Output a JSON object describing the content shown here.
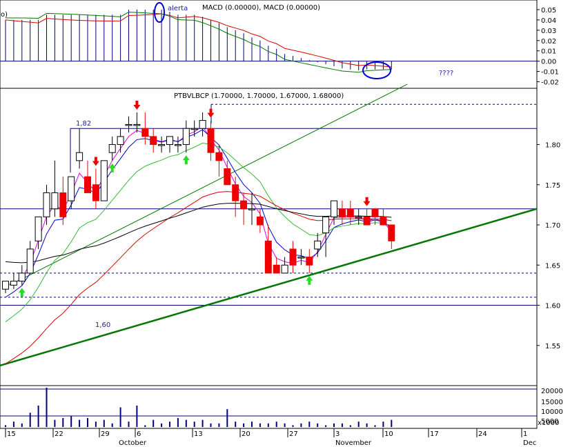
{
  "chart_data": {
    "type": "stock-candlestick-with-indicators",
    "title": "PTBVLBCP (1.70000, 1.70000, 1.67000, 1.68000)",
    "macd_title": "MACD (0.00000), MACD (0.00000)",
    "macd_note": "alerta",
    "macd_question": "????",
    "macd_left_label": "o)",
    "level_labels": [
      "1,82",
      "1,60"
    ],
    "x_tick_labels": [
      "15",
      "22",
      "29",
      "6",
      "13",
      "20",
      "27",
      "3",
      "10",
      "17",
      "24",
      "1",
      "Dec"
    ],
    "month_labels": [
      "October",
      "November"
    ],
    "price_axis": {
      "ticks": [
        "1.55",
        "1.60",
        "1.65",
        "1.70",
        "1.75",
        "1.80"
      ],
      "ylim": [
        1.5,
        1.87
      ]
    },
    "macd_axis": {
      "ticks": [
        "0.05",
        "0.04",
        "0.03",
        "0.02",
        "0.01",
        "0.00",
        "-0.01",
        "-0.02"
      ],
      "ylim": [
        -0.025,
        0.058
      ]
    },
    "volume_axis": {
      "ticks": [
        "20000",
        "15000",
        "10000",
        "5000"
      ],
      "unit_label": "x1000"
    },
    "horizontal_levels": [
      1.82,
      1.72,
      1.6
    ],
    "dashed_levels": [
      1.85,
      1.64,
      1.61
    ],
    "colors": {
      "up_candle": "#ffffff",
      "down_candle": "#ee0000",
      "frame": "#000080",
      "trend": "#007700",
      "ma_blue": "#0000cc",
      "ma_magenta": "#dd00dd",
      "ma_green": "#33bb33",
      "ma_red": "#dd0000",
      "ma_black": "#000000",
      "arrow_up": "#22dd22",
      "arrow_down": "#ee0000"
    },
    "candles": [
      {
        "day": 0,
        "o": 1.62,
        "h": 1.63,
        "l": 1.615,
        "c": 1.63
      },
      {
        "day": 1,
        "o": 1.625,
        "h": 1.64,
        "l": 1.62,
        "c": 1.63
      },
      {
        "day": 2,
        "o": 1.63,
        "h": 1.65,
        "l": 1.625,
        "c": 1.64
      },
      {
        "day": 3,
        "o": 1.64,
        "h": 1.68,
        "l": 1.64,
        "c": 1.67
      },
      {
        "day": 4,
        "o": 1.68,
        "h": 1.71,
        "l": 1.67,
        "c": 1.71
      },
      {
        "day": 5,
        "o": 1.71,
        "h": 1.75,
        "l": 1.7,
        "c": 1.74
      },
      {
        "day": 6,
        "o": 1.72,
        "h": 1.78,
        "l": 1.71,
        "c": 1.74
      },
      {
        "day": 7,
        "o": 1.74,
        "h": 1.76,
        "l": 1.7,
        "c": 1.71
      },
      {
        "day": 8,
        "o": 1.73,
        "h": 1.76,
        "l": 1.72,
        "c": 1.76
      },
      {
        "day": 9,
        "o": 1.78,
        "h": 1.82,
        "l": 1.77,
        "c": 1.79
      },
      {
        "day": 10,
        "o": 1.76,
        "h": 1.78,
        "l": 1.74,
        "c": 1.74
      },
      {
        "day": 11,
        "o": 1.75,
        "h": 1.77,
        "l": 1.72,
        "c": 1.73
      },
      {
        "day": 12,
        "o": 1.73,
        "h": 1.78,
        "l": 1.73,
        "c": 1.78
      },
      {
        "day": 13,
        "o": 1.79,
        "h": 1.81,
        "l": 1.78,
        "c": 1.8
      },
      {
        "day": 14,
        "o": 1.8,
        "h": 1.82,
        "l": 1.79,
        "c": 1.81
      },
      {
        "day": 15,
        "o": 1.825,
        "h": 1.835,
        "l": 1.815,
        "c": 1.825
      },
      {
        "day": 16,
        "o": 1.825,
        "h": 1.84,
        "l": 1.815,
        "c": 1.825
      },
      {
        "day": 17,
        "o": 1.82,
        "h": 1.84,
        "l": 1.8,
        "c": 1.81
      },
      {
        "day": 18,
        "o": 1.81,
        "h": 1.82,
        "l": 1.79,
        "c": 1.8
      },
      {
        "day": 19,
        "o": 1.8,
        "h": 1.81,
        "l": 1.79,
        "c": 1.8
      },
      {
        "day": 20,
        "o": 1.8,
        "h": 1.81,
        "l": 1.79,
        "c": 1.81
      },
      {
        "day": 21,
        "o": 1.8,
        "h": 1.81,
        "l": 1.79,
        "c": 1.8
      },
      {
        "day": 22,
        "o": 1.8,
        "h": 1.83,
        "l": 1.79,
        "c": 1.82
      },
      {
        "day": 23,
        "o": 1.82,
        "h": 1.83,
        "l": 1.81,
        "c": 1.82
      },
      {
        "day": 24,
        "o": 1.82,
        "h": 1.84,
        "l": 1.81,
        "c": 1.83
      },
      {
        "day": 25,
        "o": 1.82,
        "h": 1.83,
        "l": 1.78,
        "c": 1.79
      },
      {
        "day": 26,
        "o": 1.79,
        "h": 1.8,
        "l": 1.76,
        "c": 1.78
      },
      {
        "day": 27,
        "o": 1.77,
        "h": 1.78,
        "l": 1.75,
        "c": 1.75
      },
      {
        "day": 28,
        "o": 1.75,
        "h": 1.76,
        "l": 1.71,
        "c": 1.73
      },
      {
        "day": 29,
        "o": 1.73,
        "h": 1.74,
        "l": 1.7,
        "c": 1.72
      },
      {
        "day": 30,
        "o": 1.72,
        "h": 1.74,
        "l": 1.7,
        "c": 1.72
      },
      {
        "day": 31,
        "o": 1.71,
        "h": 1.72,
        "l": 1.69,
        "c": 1.7
      },
      {
        "day": 32,
        "o": 1.68,
        "h": 1.7,
        "l": 1.64,
        "c": 1.64
      },
      {
        "day": 33,
        "o": 1.65,
        "h": 1.66,
        "l": 1.64,
        "c": 1.64
      },
      {
        "day": 34,
        "o": 1.64,
        "h": 1.66,
        "l": 1.64,
        "c": 1.65
      },
      {
        "day": 35,
        "o": 1.67,
        "h": 1.68,
        "l": 1.64,
        "c": 1.65
      },
      {
        "day": 36,
        "o": 1.66,
        "h": 1.67,
        "l": 1.65,
        "c": 1.66
      },
      {
        "day": 37,
        "o": 1.66,
        "h": 1.67,
        "l": 1.64,
        "c": 1.65
      },
      {
        "day": 38,
        "o": 1.67,
        "h": 1.69,
        "l": 1.66,
        "c": 1.68
      },
      {
        "day": 39,
        "o": 1.69,
        "h": 1.71,
        "l": 1.66,
        "c": 1.71
      },
      {
        "day": 40,
        "o": 1.71,
        "h": 1.73,
        "l": 1.7,
        "c": 1.73
      },
      {
        "day": 41,
        "o": 1.72,
        "h": 1.73,
        "l": 1.7,
        "c": 1.71
      },
      {
        "day": 42,
        "o": 1.72,
        "h": 1.73,
        "l": 1.7,
        "c": 1.71
      },
      {
        "day": 43,
        "o": 1.71,
        "h": 1.72,
        "l": 1.7,
        "c": 1.71
      },
      {
        "day": 44,
        "o": 1.71,
        "h": 1.72,
        "l": 1.7,
        "c": 1.7
      },
      {
        "day": 45,
        "o": 1.72,
        "h": 1.72,
        "l": 1.7,
        "c": 1.71
      },
      {
        "day": 46,
        "o": 1.71,
        "h": 1.72,
        "l": 1.7,
        "c": 1.7
      },
      {
        "day": 47,
        "o": 1.7,
        "h": 1.7,
        "l": 1.67,
        "c": 1.68
      }
    ],
    "volumes": [
      1,
      3,
      2,
      8,
      12,
      22,
      4,
      5,
      6,
      4,
      5,
      3,
      4,
      2,
      11,
      3,
      12,
      1,
      4,
      2,
      3,
      5,
      4,
      3,
      4,
      2,
      2,
      10,
      3,
      2,
      3,
      2,
      2,
      3,
      2,
      1,
      2,
      3,
      2,
      1,
      2,
      2,
      1,
      3,
      2,
      1,
      3,
      4
    ],
    "arrows_up_days": [
      2,
      13,
      22,
      37
    ],
    "arrows_down_days": [
      11,
      16,
      25,
      44
    ],
    "macd_histogram": [
      0.04,
      0.04,
      0.04,
      0.04,
      0.04,
      0.045,
      0.045,
      0.045,
      0.045,
      0.045,
      0.045,
      0.045,
      0.045,
      0.045,
      0.045,
      0.05,
      0.05,
      0.05,
      0.05,
      0.05,
      0.048,
      0.045,
      0.045,
      0.045,
      0.043,
      0.04,
      0.037,
      0.033,
      0.03,
      0.027,
      0.023,
      0.02,
      0.015,
      0.012,
      0.007,
      0.005,
      0.003,
      0.001,
      -0.001,
      -0.003,
      -0.005,
      -0.007,
      -0.008,
      -0.009,
      -0.008,
      -0.008,
      -0.008,
      -0.008
    ]
  }
}
